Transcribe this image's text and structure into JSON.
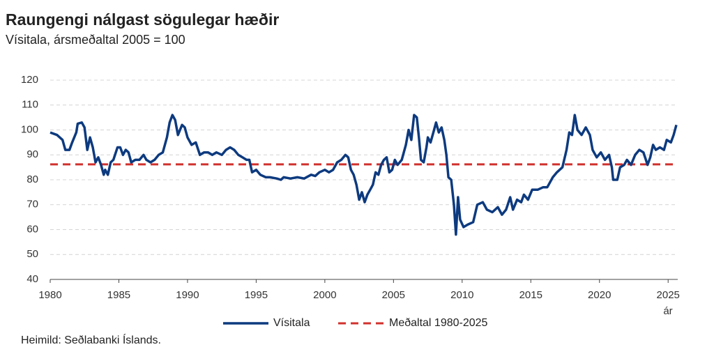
{
  "chart_data": {
    "type": "line",
    "title": "Raungengi nálgast sögulegar hæðir",
    "subtitle": "Vísitala, ársmeðaltal 2005 = 100",
    "x_label": "ár",
    "source": "Heimild: Seðlabanki Íslands.",
    "xlim": [
      1980,
      2025.7
    ],
    "xticks": [
      1980,
      1985,
      1990,
      1995,
      2000,
      2005,
      2010,
      2015,
      2020,
      2025
    ],
    "ylim": [
      40,
      120
    ],
    "yticks": [
      40,
      50,
      60,
      70,
      80,
      90,
      100,
      110,
      120
    ],
    "grid": true,
    "series": [
      {
        "name": "Vísitala",
        "color": "#0d3a7f",
        "x": [
          1980.0,
          1980.5,
          1980.9,
          1981.1,
          1981.4,
          1981.6,
          1981.9,
          1982.0,
          1982.3,
          1982.5,
          1982.7,
          1982.9,
          1983.1,
          1983.3,
          1983.5,
          1983.7,
          1983.9,
          1984.0,
          1984.2,
          1984.4,
          1984.6,
          1984.9,
          1985.1,
          1985.3,
          1985.5,
          1985.7,
          1985.9,
          1986.2,
          1986.5,
          1986.8,
          1987.0,
          1987.3,
          1987.6,
          1987.9,
          1988.2,
          1988.5,
          1988.7,
          1988.9,
          1989.1,
          1989.3,
          1989.6,
          1989.8,
          1990.0,
          1990.3,
          1990.6,
          1990.9,
          1991.2,
          1991.5,
          1991.8,
          1992.1,
          1992.5,
          1992.8,
          1993.1,
          1993.4,
          1993.7,
          1994.0,
          1994.3,
          1994.5,
          1994.7,
          1995.0,
          1995.3,
          1995.7,
          1996.0,
          1996.5,
          1996.8,
          1997.0,
          1997.5,
          1998.0,
          1998.5,
          1999.0,
          1999.3,
          1999.6,
          2000.0,
          2000.3,
          2000.6,
          2000.9,
          2001.2,
          2001.5,
          2001.7,
          2001.9,
          2002.1,
          2002.3,
          2002.5,
          2002.7,
          2002.9,
          2003.1,
          2003.3,
          2003.5,
          2003.7,
          2003.9,
          2004.1,
          2004.3,
          2004.5,
          2004.7,
          2004.9,
          2005.1,
          2005.3,
          2005.6,
          2005.9,
          2006.1,
          2006.3,
          2006.5,
          2006.7,
          2006.85,
          2007.0,
          2007.2,
          2007.4,
          2007.5,
          2007.7,
          2007.9,
          2008.1,
          2008.3,
          2008.5,
          2008.7,
          2008.85,
          2009.0,
          2009.2,
          2009.4,
          2009.55,
          2009.7,
          2009.85,
          2010.1,
          2010.4,
          2010.8,
          2011.1,
          2011.5,
          2011.8,
          2012.2,
          2012.6,
          2012.9,
          2013.2,
          2013.5,
          2013.7,
          2014.0,
          2014.3,
          2014.5,
          2014.8,
          2015.1,
          2015.5,
          2015.9,
          2016.2,
          2016.6,
          2016.9,
          2017.3,
          2017.6,
          2017.8,
          2018.0,
          2018.2,
          2018.4,
          2018.7,
          2019.0,
          2019.3,
          2019.5,
          2019.8,
          2020.1,
          2020.4,
          2020.7,
          2020.9,
          2021.0,
          2021.3,
          2021.5,
          2021.8,
          2022.0,
          2022.3,
          2022.6,
          2022.9,
          2023.2,
          2023.5,
          2023.7,
          2023.9,
          2024.1,
          2024.4,
          2024.7,
          2024.9,
          2025.2,
          2025.4,
          2025.6
        ],
        "values": [
          99,
          98,
          96,
          92,
          92,
          95,
          99,
          102.5,
          103,
          101,
          92,
          97,
          93,
          87,
          89,
          86,
          82,
          84,
          82,
          87,
          88,
          93,
          93,
          90,
          92,
          91,
          87,
          88,
          88,
          90,
          88,
          87,
          88,
          90,
          91,
          97,
          103,
          106,
          104,
          98,
          102,
          101,
          97,
          94,
          95,
          90,
          91,
          91,
          90,
          91,
          90,
          92,
          93,
          92,
          90,
          89,
          88,
          88,
          83,
          84,
          82,
          81,
          81,
          80.5,
          80,
          81,
          80.5,
          81,
          80.5,
          82,
          81.5,
          83,
          84,
          83,
          84,
          87,
          88,
          90,
          89,
          84,
          82,
          78,
          72,
          75,
          71,
          74,
          76,
          78,
          83,
          82,
          86,
          88,
          89,
          83,
          84,
          88,
          86,
          88,
          94,
          100,
          96,
          106,
          105,
          97,
          88,
          87,
          93,
          97,
          95,
          99,
          103,
          99,
          101,
          96,
          90,
          81,
          80,
          70,
          58,
          73,
          64,
          61,
          62,
          63,
          70,
          71,
          68,
          67,
          69,
          66,
          68,
          73,
          68,
          72,
          71,
          74,
          72,
          76,
          76,
          77,
          77,
          81,
          83,
          85,
          92,
          99,
          98,
          106,
          100,
          98,
          101,
          98,
          92,
          89,
          91,
          88,
          90,
          85,
          80,
          80,
          85,
          86,
          88,
          86,
          90,
          92,
          91,
          86,
          89,
          94,
          92,
          93,
          92,
          96,
          95,
          98,
          102
        ]
      }
    ],
    "reference_line": {
      "name": "Meðaltal 1980-2025",
      "value": 86.2,
      "color": "#d0312d"
    }
  }
}
